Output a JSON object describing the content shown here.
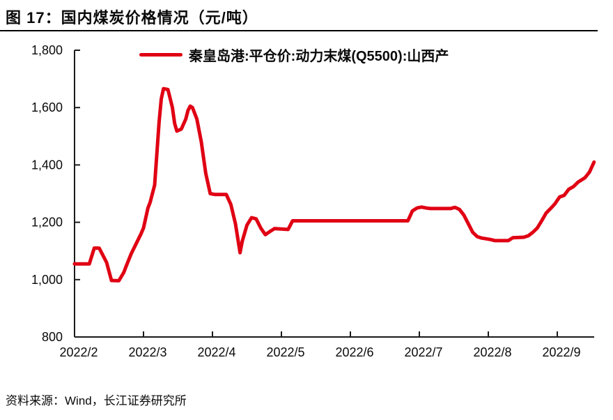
{
  "header": {
    "title": "图 17：国内煤炭价格情况（元/吨）"
  },
  "legend": {
    "label": "秦皇岛港:平仓价:动力末煤(Q5500):山西产",
    "color": "#e00013"
  },
  "footer": {
    "source": "资料来源：Wind，长江证券研究所"
  },
  "colors": {
    "series": "#e00013",
    "axis": "#1a1a1a",
    "background": "#ffffff"
  },
  "chart_data": {
    "type": "line",
    "title": "国内煤炭价格情况（元/吨）",
    "unit": "元/吨",
    "grid": false,
    "legend_position": "top",
    "ylim": [
      800,
      1800
    ],
    "y_tick_values": [
      800,
      1000,
      1200,
      1400,
      1600,
      1800
    ],
    "y_tick_labels": [
      "800",
      "1,000",
      "1,200",
      "1,400",
      "1,600",
      "1,800"
    ],
    "x_tick_labels": [
      "2022/2",
      "2022/3",
      "2022/4",
      "2022/5",
      "2022/6",
      "2022/7",
      "2022/8",
      "2022/9"
    ],
    "series": [
      {
        "name": "秦皇岛港:平仓价:动力末煤(Q5500):山西产",
        "color": "#e00013",
        "points": [
          [
            "2022-02-01",
            1055
          ],
          [
            "2022-02-07",
            1055
          ],
          [
            "2022-02-09",
            1110
          ],
          [
            "2022-02-11",
            1110
          ],
          [
            "2022-02-14",
            1060
          ],
          [
            "2022-02-16",
            997
          ],
          [
            "2022-02-19",
            996
          ],
          [
            "2022-02-21",
            1025
          ],
          [
            "2022-02-22",
            1048
          ],
          [
            "2022-02-24",
            1090
          ],
          [
            "2022-02-26",
            1125
          ],
          [
            "2022-02-28",
            1160
          ],
          [
            "2022-03-01",
            1180
          ],
          [
            "2022-03-02",
            1215
          ],
          [
            "2022-03-03",
            1250
          ],
          [
            "2022-03-04",
            1270
          ],
          [
            "2022-03-06",
            1330
          ],
          [
            "2022-03-07",
            1440
          ],
          [
            "2022-03-08",
            1550
          ],
          [
            "2022-03-09",
            1630
          ],
          [
            "2022-03-10",
            1666
          ],
          [
            "2022-03-12",
            1663
          ],
          [
            "2022-03-14",
            1600
          ],
          [
            "2022-03-15",
            1545
          ],
          [
            "2022-03-16",
            1518
          ],
          [
            "2022-03-18",
            1525
          ],
          [
            "2022-03-20",
            1560
          ],
          [
            "2022-03-21",
            1590
          ],
          [
            "2022-03-22",
            1605
          ],
          [
            "2022-03-23",
            1600
          ],
          [
            "2022-03-25",
            1560
          ],
          [
            "2022-03-27",
            1480
          ],
          [
            "2022-03-29",
            1370
          ],
          [
            "2022-03-31",
            1300
          ],
          [
            "2022-04-02",
            1297
          ],
          [
            "2022-04-07",
            1297
          ],
          [
            "2022-04-09",
            1262
          ],
          [
            "2022-04-11",
            1195
          ],
          [
            "2022-04-13",
            1094
          ],
          [
            "2022-04-14",
            1135
          ],
          [
            "2022-04-16",
            1190
          ],
          [
            "2022-04-18",
            1216
          ],
          [
            "2022-04-20",
            1212
          ],
          [
            "2022-04-22",
            1180
          ],
          [
            "2022-04-24",
            1157
          ],
          [
            "2022-04-26",
            1168
          ],
          [
            "2022-04-28",
            1178
          ],
          [
            "2022-05-04",
            1175
          ],
          [
            "2022-05-06",
            1205
          ],
          [
            "2022-05-20",
            1205
          ],
          [
            "2022-06-10",
            1205
          ],
          [
            "2022-06-26",
            1205
          ],
          [
            "2022-06-28",
            1240
          ],
          [
            "2022-06-30",
            1250
          ],
          [
            "2022-07-02",
            1253
          ],
          [
            "2022-07-04",
            1250
          ],
          [
            "2022-07-06",
            1248
          ],
          [
            "2022-07-15",
            1248
          ],
          [
            "2022-07-17",
            1252
          ],
          [
            "2022-07-19",
            1245
          ],
          [
            "2022-07-21",
            1225
          ],
          [
            "2022-07-23",
            1195
          ],
          [
            "2022-07-25",
            1165
          ],
          [
            "2022-07-27",
            1150
          ],
          [
            "2022-07-29",
            1145
          ],
          [
            "2022-08-02",
            1140
          ],
          [
            "2022-08-04",
            1136
          ],
          [
            "2022-08-10",
            1136
          ],
          [
            "2022-08-12",
            1146
          ],
          [
            "2022-08-17",
            1148
          ],
          [
            "2022-08-19",
            1153
          ],
          [
            "2022-08-21",
            1165
          ],
          [
            "2022-08-23",
            1180
          ],
          [
            "2022-08-25",
            1205
          ],
          [
            "2022-08-27",
            1232
          ],
          [
            "2022-08-29",
            1248
          ],
          [
            "2022-08-31",
            1265
          ],
          [
            "2022-09-02",
            1288
          ],
          [
            "2022-09-04",
            1294
          ],
          [
            "2022-09-06",
            1315
          ],
          [
            "2022-09-08",
            1324
          ],
          [
            "2022-09-10",
            1340
          ],
          [
            "2022-09-13",
            1355
          ],
          [
            "2022-09-15",
            1375
          ],
          [
            "2022-09-17",
            1410
          ]
        ]
      }
    ]
  }
}
